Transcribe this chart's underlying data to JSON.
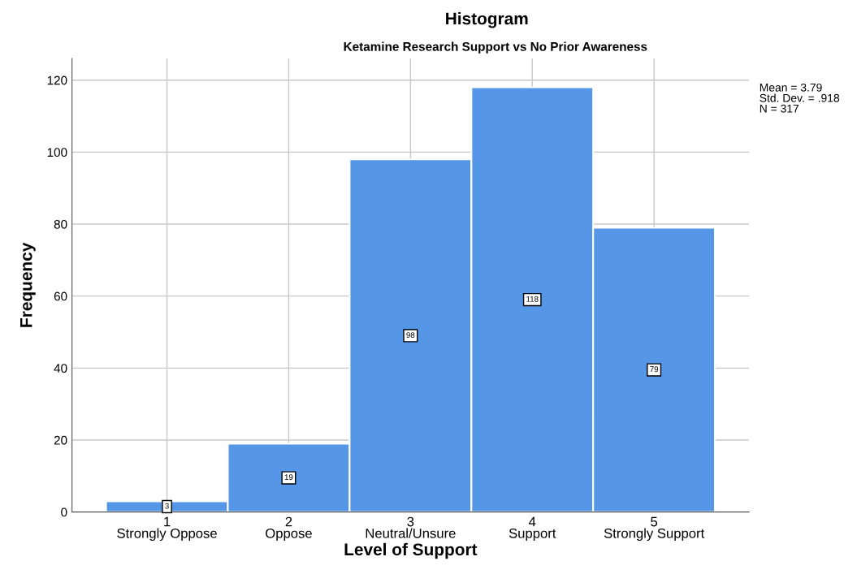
{
  "chart_data": {
    "type": "histogram",
    "title": "Histogram",
    "subtitle": "Ketamine Research Support vs No Prior Awareness",
    "xlabel": "Level of Support",
    "ylabel": "Frequency",
    "bins": [
      0.5,
      1.5,
      2.5,
      3.5,
      4.5,
      5.5
    ],
    "values": [
      3,
      19,
      98,
      118,
      79
    ],
    "color": "#5596e6",
    "data_labels": true,
    "xlim": [
      0.22,
      5.78
    ],
    "xticks": [
      {
        "value": 1,
        "label": "1\nStrongly Oppose"
      },
      {
        "value": 2,
        "label": "2\nOppose"
      },
      {
        "value": 3,
        "label": "3\nNeutral/Unsure"
      },
      {
        "value": 4,
        "label": "4\nSupport"
      },
      {
        "value": 5,
        "label": "5\nStrongly Support"
      }
    ],
    "ylim": [
      0,
      126
    ],
    "yticks": [
      0,
      20,
      40,
      60,
      80,
      100,
      120
    ],
    "grid": true,
    "annotations": [
      "Mean = 3.79\nStd. Dev. = .918\nN = 317"
    ]
  }
}
